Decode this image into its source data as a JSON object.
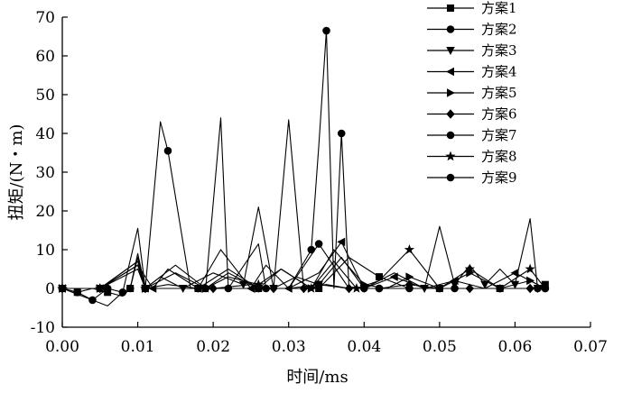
{
  "chart_data": {
    "type": "line",
    "title": "",
    "xlabel": "时间/ms",
    "ylabel": "扭矩/(N・m)",
    "xlim": [
      0.0,
      0.07
    ],
    "ylim": [
      -10,
      70
    ],
    "xticks": [
      0.0,
      0.01,
      0.02,
      0.03,
      0.04,
      0.05,
      0.06,
      0.07
    ],
    "xtick_labels": [
      "0.00",
      "0.01",
      "0.02",
      "0.03",
      "0.04",
      "0.05",
      "0.06",
      "0.07"
    ],
    "yticks": [
      -10,
      0,
      10,
      20,
      30,
      40,
      50,
      60,
      70
    ],
    "ytick_labels": [
      "-10",
      "0",
      "10",
      "20",
      "30",
      "40",
      "50",
      "60",
      "70"
    ],
    "grid": false,
    "legend_position": "top-right",
    "line_color": "#000000",
    "series": [
      {
        "name": "方案1",
        "marker": "square",
        "x": [
          0,
          0.002,
          0.004,
          0.006,
          0.008,
          0.009,
          0.01,
          0.011,
          0.014,
          0.018,
          0.022,
          0.026,
          0.03,
          0.034,
          0.038,
          0.042,
          0.046,
          0.05,
          0.054,
          0.058,
          0.062,
          0.064
        ],
        "y": [
          0,
          -1,
          0,
          -1,
          -2,
          0,
          8,
          0,
          0,
          0,
          5,
          0,
          0,
          0,
          8,
          3,
          0,
          0,
          0,
          0,
          0,
          1
        ]
      },
      {
        "name": "方案2",
        "marker": "circle",
        "x": [
          0,
          0.002,
          0.004,
          0.006,
          0.008,
          0.009,
          0.01,
          0.011,
          0.014,
          0.018,
          0.022,
          0.026,
          0.03,
          0.034,
          0.038,
          0.042,
          0.046,
          0.05,
          0.054,
          0.058,
          0.062,
          0.064
        ],
        "y": [
          0,
          -1,
          -3,
          0,
          -1,
          0,
          9,
          0,
          1,
          0,
          0,
          0,
          0,
          1,
          0,
          0,
          0,
          0,
          0,
          0,
          0,
          0
        ]
      },
      {
        "name": "方案3",
        "marker": "triangle-down",
        "x": [
          0,
          0.005,
          0.01,
          0.011,
          0.013,
          0.016,
          0.02,
          0.024,
          0.026,
          0.028,
          0.031,
          0.034,
          0.037,
          0.04,
          0.044,
          0.048,
          0.05,
          0.052,
          0.054,
          0.056,
          0.058,
          0.06,
          0.062,
          0.063,
          0.064
        ],
        "y": [
          0,
          0,
          7,
          0,
          3,
          0,
          4,
          1,
          21,
          0,
          3,
          1,
          8,
          0,
          4,
          0,
          16,
          1,
          6,
          1,
          5,
          1,
          18,
          0,
          0
        ]
      },
      {
        "name": "方案4",
        "marker": "triangle-left",
        "x": [
          0,
          0.005,
          0.01,
          0.012,
          0.014,
          0.018,
          0.021,
          0.025,
          0.027,
          0.03,
          0.034,
          0.037,
          0.04,
          0.044,
          0.048,
          0.052,
          0.056,
          0.06,
          0.064
        ],
        "y": [
          0,
          0,
          6,
          0,
          5,
          0,
          10,
          0,
          6,
          0,
          4,
          12,
          0,
          3,
          0,
          2,
          0,
          4,
          0
        ]
      },
      {
        "name": "方案5",
        "marker": "triangle-right",
        "x": [
          0,
          0.005,
          0.01,
          0.011,
          0.015,
          0.019,
          0.022,
          0.026,
          0.029,
          0.033,
          0.036,
          0.04,
          0.043,
          0.046,
          0.05,
          0.054,
          0.058,
          0.062,
          0.064
        ],
        "y": [
          0,
          0,
          5,
          0,
          6,
          0,
          4,
          0,
          5,
          0,
          10,
          1,
          0,
          3,
          0,
          4,
          0,
          2,
          0
        ]
      },
      {
        "name": "方案6",
        "marker": "diamond",
        "x": [
          0,
          0.005,
          0.01,
          0.011,
          0.015,
          0.02,
          0.025,
          0.028,
          0.03,
          0.032,
          0.035,
          0.038,
          0.042,
          0.046,
          0.05,
          0.054,
          0.058,
          0.062,
          0.064
        ],
        "y": [
          0,
          0,
          6,
          0,
          0,
          0,
          1,
          0,
          43.5,
          0,
          1,
          0,
          0,
          1,
          0,
          0,
          0,
          0,
          0
        ]
      },
      {
        "name": "方案7",
        "marker": "circle",
        "x": [
          0,
          0.004,
          0.006,
          0.008,
          0.01,
          0.011,
          0.013,
          0.014,
          0.017,
          0.019,
          0.021,
          0.022,
          0.026,
          0.027,
          0.03,
          0.033,
          0.034,
          0.035,
          0.036,
          0.037,
          0.038,
          0.04,
          0.043,
          0.046,
          0.049,
          0.052,
          0.055,
          0.058,
          0.061,
          0.063,
          0.064
        ],
        "y": [
          0,
          -3,
          -4.5,
          -1,
          15.5,
          0,
          43,
          35.5,
          0,
          0,
          44,
          0,
          11.5,
          0,
          0,
          10,
          37,
          66.5,
          0,
          40,
          0,
          0,
          0,
          0,
          0,
          0,
          0,
          0,
          0,
          0,
          0
        ]
      },
      {
        "name": "方案8",
        "marker": "star",
        "x": [
          0,
          0.005,
          0.01,
          0.011,
          0.015,
          0.019,
          0.022,
          0.026,
          0.029,
          0.033,
          0.036,
          0.039,
          0.042,
          0.046,
          0.05,
          0.054,
          0.058,
          0.062,
          0.064
        ],
        "y": [
          0,
          0,
          6,
          0,
          4,
          0,
          3,
          1,
          5,
          0,
          7,
          0,
          2,
          10,
          0,
          5,
          0,
          5,
          0
        ]
      },
      {
        "name": "方案9",
        "marker": "circle",
        "x": [
          0,
          0.005,
          0.01,
          0.011,
          0.014,
          0.018,
          0.022,
          0.026,
          0.03,
          0.034,
          0.038,
          0.042,
          0.046,
          0.05,
          0.054,
          0.058,
          0.062,
          0.064
        ],
        "y": [
          0,
          0,
          7,
          0,
          0,
          0,
          0,
          0,
          0,
          11.5,
          0,
          0,
          0,
          0,
          0,
          0,
          0,
          0
        ]
      }
    ]
  }
}
